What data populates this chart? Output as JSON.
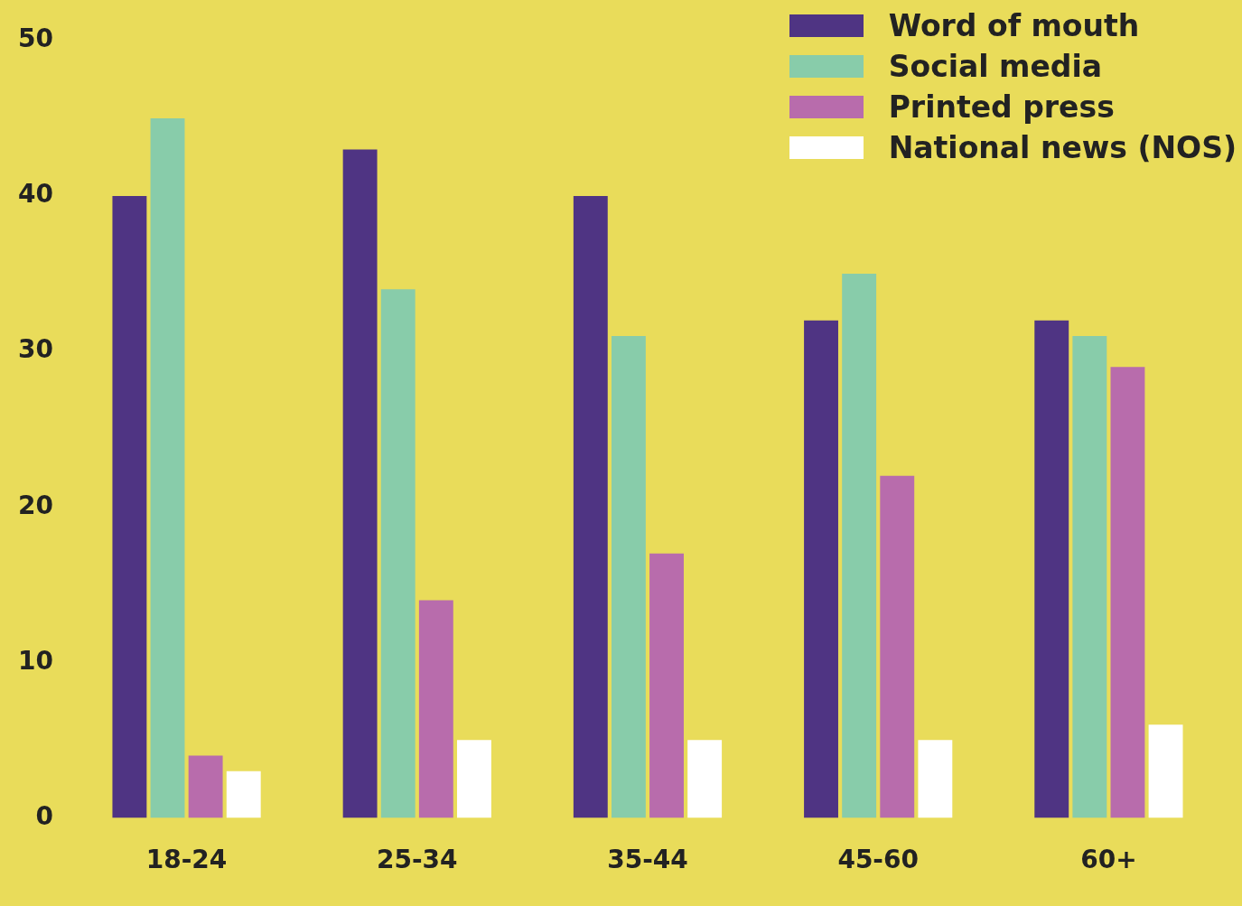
{
  "chart_data": {
    "type": "bar",
    "categories": [
      "18-24",
      "25-34",
      "35-44",
      "45-60",
      "60+"
    ],
    "series": [
      {
        "name": "Word of mouth",
        "color": "#4f3483",
        "values": [
          40,
          43,
          40,
          32,
          32
        ]
      },
      {
        "name": "Social media",
        "color": "#88ccaa",
        "values": [
          45,
          34,
          31,
          35,
          31
        ]
      },
      {
        "name": "Printed press",
        "color": "#b86cac",
        "values": [
          4,
          14,
          17,
          22,
          29
        ]
      },
      {
        "name": "National news (NOS)",
        "color": "#ffffff",
        "values": [
          3,
          5,
          5,
          5,
          6
        ]
      }
    ],
    "ylim": [
      0,
      50
    ],
    "yticks": [
      0,
      10,
      20,
      30,
      40,
      50
    ],
    "grid": false,
    "legend": "top right"
  }
}
